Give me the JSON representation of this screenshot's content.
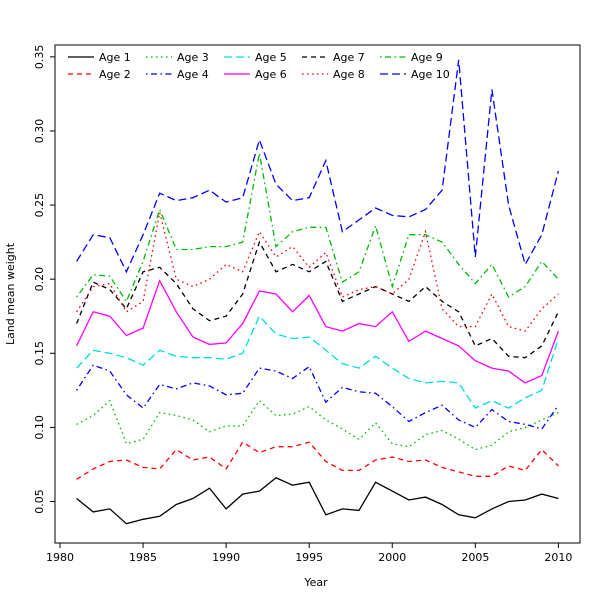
{
  "chart_data": {
    "type": "line",
    "title": "",
    "xlabel": "Year",
    "ylabel": "Land mean weight",
    "grid": false,
    "legend_position": "top-inside",
    "legend_columns": 5,
    "xlim": [
      1979.7,
      2011.3
    ],
    "ylim": [
      0.022,
      0.358
    ],
    "x_ticks": [
      1980,
      1985,
      1990,
      1995,
      2000,
      2005,
      2010
    ],
    "y_ticks": [
      0.05,
      0.1,
      0.15,
      0.2,
      0.25,
      0.3,
      0.35
    ],
    "x": [
      1981,
      1982,
      1983,
      1984,
      1985,
      1986,
      1987,
      1988,
      1989,
      1990,
      1991,
      1992,
      1993,
      1994,
      1995,
      1996,
      1997,
      1998,
      1999,
      2000,
      2001,
      2002,
      2003,
      2004,
      2005,
      2006,
      2007,
      2008,
      2009,
      2010
    ],
    "series": [
      {
        "id": "age-1",
        "name": "Age 1",
        "color": "#000000",
        "linestyle": "solid",
        "values": [
          0.052,
          0.043,
          0.045,
          0.035,
          0.038,
          0.04,
          0.048,
          0.052,
          0.059,
          0.045,
          0.055,
          0.057,
          0.066,
          0.061,
          0.063,
          0.041,
          0.045,
          0.044,
          0.063,
          0.057,
          0.051,
          0.053,
          0.048,
          0.041,
          0.039,
          0.045,
          0.05,
          0.051,
          0.055,
          0.052
        ]
      },
      {
        "id": "age-2",
        "name": "Age 2",
        "color": "#FF0000",
        "linestyle": "dashed",
        "values": [
          0.065,
          0.072,
          0.077,
          0.078,
          0.073,
          0.072,
          0.085,
          0.078,
          0.08,
          0.072,
          0.09,
          0.083,
          0.087,
          0.087,
          0.09,
          0.077,
          0.071,
          0.071,
          0.078,
          0.08,
          0.077,
          0.078,
          0.073,
          0.07,
          0.067,
          0.067,
          0.074,
          0.071,
          0.085,
          0.074
        ]
      },
      {
        "id": "age-3",
        "name": "Age 3",
        "color": "#00BB00",
        "linestyle": "dotted",
        "values": [
          0.102,
          0.108,
          0.118,
          0.089,
          0.092,
          0.11,
          0.108,
          0.105,
          0.097,
          0.101,
          0.101,
          0.118,
          0.108,
          0.109,
          0.114,
          0.105,
          0.099,
          0.092,
          0.103,
          0.089,
          0.087,
          0.095,
          0.098,
          0.092,
          0.085,
          0.088,
          0.097,
          0.1,
          0.105,
          0.11
        ]
      },
      {
        "id": "age-4",
        "name": "Age 4",
        "color": "#0000FF",
        "linestyle": "dashdot",
        "values": [
          0.125,
          0.142,
          0.138,
          0.122,
          0.113,
          0.129,
          0.126,
          0.13,
          0.128,
          0.122,
          0.123,
          0.14,
          0.138,
          0.133,
          0.141,
          0.117,
          0.127,
          0.124,
          0.123,
          0.114,
          0.104,
          0.11,
          0.115,
          0.105,
          0.1,
          0.112,
          0.104,
          0.102,
          0.099,
          0.115
        ]
      },
      {
        "id": "age-5",
        "name": "Age 5",
        "color": "#00DDDD",
        "linestyle": "longdash",
        "values": [
          0.14,
          0.152,
          0.15,
          0.147,
          0.142,
          0.152,
          0.148,
          0.147,
          0.147,
          0.146,
          0.15,
          0.175,
          0.163,
          0.16,
          0.161,
          0.152,
          0.143,
          0.14,
          0.148,
          0.14,
          0.133,
          0.13,
          0.131,
          0.13,
          0.113,
          0.118,
          0.113,
          0.12,
          0.125,
          0.16
        ]
      },
      {
        "id": "age-6",
        "name": "Age 6",
        "color": "#FF00FF",
        "linestyle": "solid",
        "values": [
          0.155,
          0.178,
          0.175,
          0.162,
          0.167,
          0.199,
          0.178,
          0.161,
          0.156,
          0.157,
          0.17,
          0.192,
          0.19,
          0.178,
          0.189,
          0.168,
          0.165,
          0.17,
          0.168,
          0.178,
          0.158,
          0.165,
          0.16,
          0.155,
          0.145,
          0.14,
          0.138,
          0.13,
          0.135,
          0.165
        ]
      },
      {
        "id": "age-7",
        "name": "Age 7",
        "color": "#000000",
        "linestyle": "dashed",
        "values": [
          0.17,
          0.198,
          0.193,
          0.18,
          0.205,
          0.208,
          0.197,
          0.18,
          0.172,
          0.175,
          0.19,
          0.225,
          0.205,
          0.21,
          0.205,
          0.212,
          0.185,
          0.19,
          0.195,
          0.19,
          0.185,
          0.195,
          0.185,
          0.178,
          0.155,
          0.16,
          0.148,
          0.147,
          0.155,
          0.178
        ]
      },
      {
        "id": "age-8",
        "name": "Age 8",
        "color": "#FF0000",
        "linestyle": "dotted",
        "values": [
          0.178,
          0.195,
          0.197,
          0.178,
          0.185,
          0.245,
          0.2,
          0.195,
          0.2,
          0.21,
          0.205,
          0.232,
          0.215,
          0.222,
          0.208,
          0.218,
          0.188,
          0.193,
          0.195,
          0.19,
          0.2,
          0.232,
          0.18,
          0.168,
          0.168,
          0.19,
          0.168,
          0.165,
          0.18,
          0.19
        ]
      },
      {
        "id": "age-9",
        "name": "Age 9",
        "color": "#00BB00",
        "linestyle": "dashdot",
        "values": [
          0.188,
          0.203,
          0.202,
          0.185,
          0.212,
          0.247,
          0.22,
          0.22,
          0.222,
          0.222,
          0.225,
          0.285,
          0.222,
          0.232,
          0.235,
          0.235,
          0.198,
          0.205,
          0.236,
          0.195,
          0.23,
          0.23,
          0.225,
          0.21,
          0.197,
          0.21,
          0.188,
          0.195,
          0.212,
          0.2
        ]
      },
      {
        "id": "age-10",
        "name": "Age 10",
        "color": "#0000FF",
        "linestyle": "longdash",
        "values": [
          0.212,
          0.23,
          0.228,
          0.205,
          0.23,
          0.258,
          0.253,
          0.255,
          0.26,
          0.252,
          0.255,
          0.294,
          0.264,
          0.253,
          0.255,
          0.28,
          0.232,
          0.24,
          0.248,
          0.243,
          0.242,
          0.247,
          0.26,
          0.348,
          0.215,
          0.328,
          0.25,
          0.21,
          0.23,
          0.273
        ]
      }
    ]
  }
}
